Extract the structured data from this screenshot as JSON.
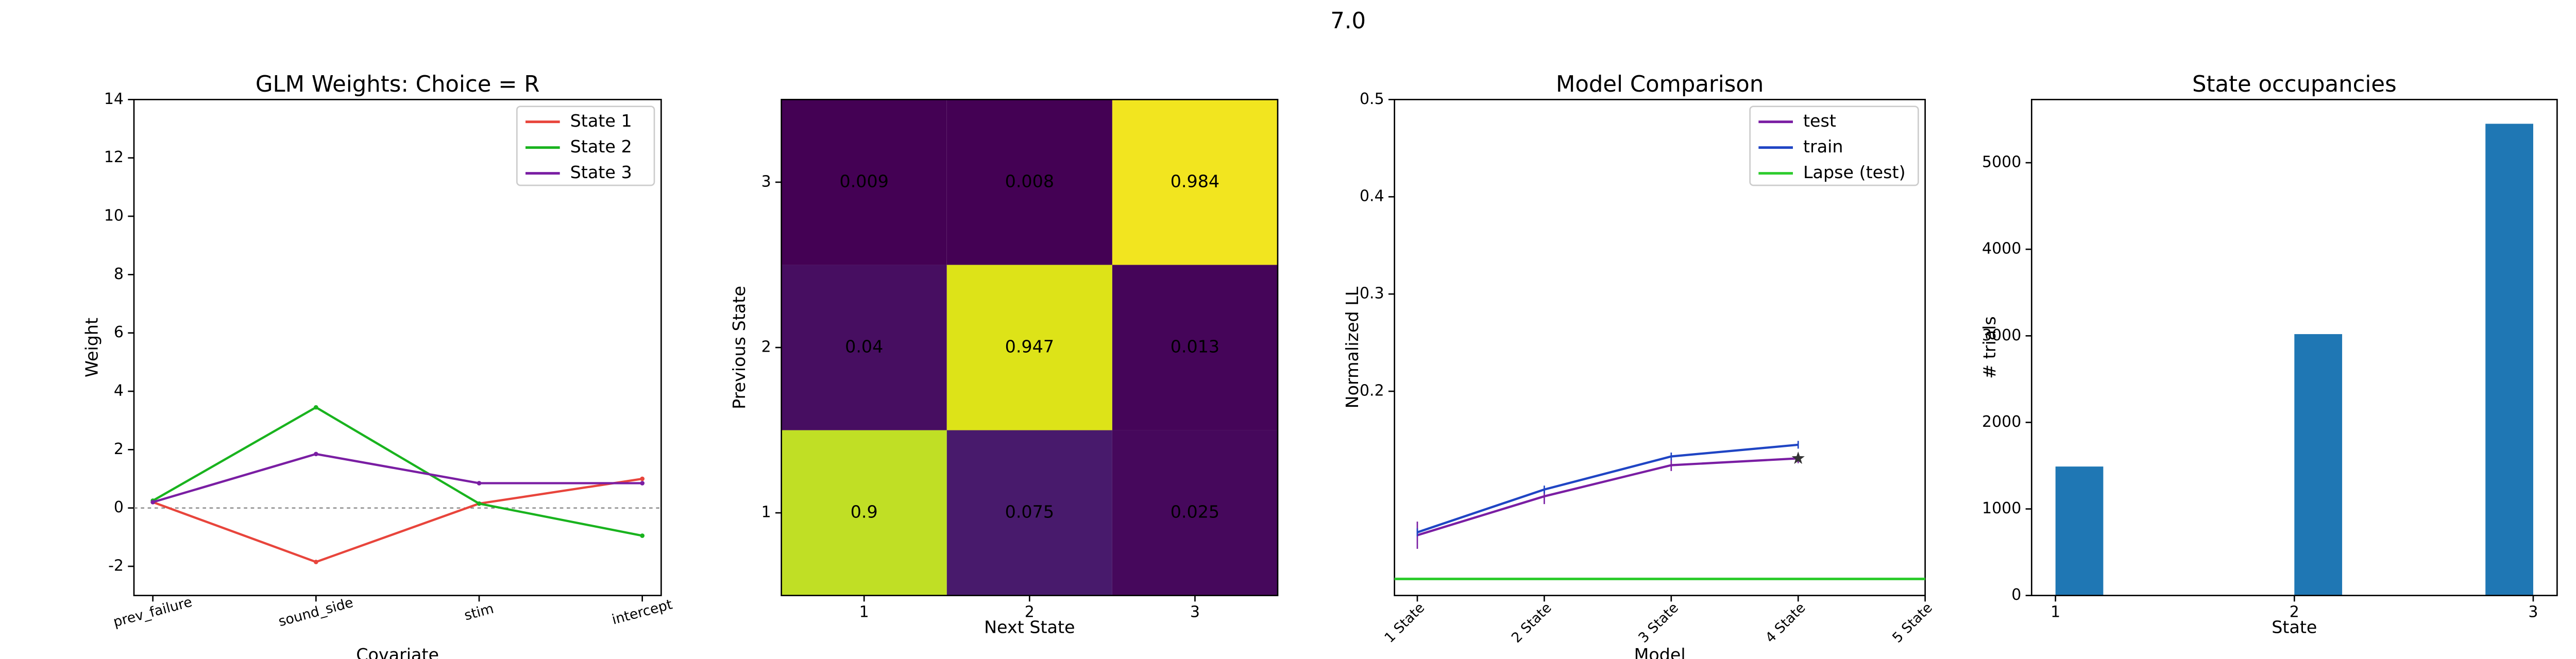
{
  "title": "7.0",
  "chart_data": [
    {
      "type": "line",
      "title": "GLM Weights: Choice = R",
      "x_label": "Covariate",
      "y_label": "Weight",
      "categories": [
        "prev_failure",
        "sound_side",
        "stim",
        "intercept"
      ],
      "series": [
        {
          "name": "State 1",
          "color": "#e8453c",
          "values": [
            0.2,
            -1.85,
            0.15,
            1.0
          ]
        },
        {
          "name": "State 2",
          "color": "#19b31e",
          "values": [
            0.25,
            3.45,
            0.15,
            -0.95
          ]
        },
        {
          "name": "State 3",
          "color": "#7a1ea3",
          "values": [
            0.2,
            1.85,
            0.85,
            0.85
          ]
        }
      ],
      "ylim": [
        -3,
        14
      ],
      "yticks": [
        -2,
        0,
        2,
        4,
        6,
        8,
        10,
        12,
        14
      ],
      "hline": 0,
      "legend": "upper right"
    },
    {
      "type": "heatmap",
      "x_label": "Next State",
      "y_label": "Previous State",
      "x_categories": [
        "1",
        "2",
        "3"
      ],
      "y_categories": [
        "1",
        "2",
        "3"
      ],
      "values": [
        [
          0.9,
          0.075,
          0.025
        ],
        [
          0.04,
          0.947,
          0.013
        ],
        [
          0.009,
          0.008,
          0.984
        ]
      ],
      "colors": [
        [
          "#c0df25",
          "#481a6c",
          "#46085c"
        ],
        [
          "#470e61",
          "#dde318",
          "#450559"
        ],
        [
          "#440154",
          "#440154",
          "#f2e51f"
        ]
      ]
    },
    {
      "type": "line",
      "title": "Model Comparison",
      "x_label": "Model",
      "y_label": "Normalized LL",
      "xlim": [
        0.82,
        5
      ],
      "xticks": [
        {
          "value": 1,
          "label": "1 State"
        },
        {
          "value": 2,
          "label": "2 State"
        },
        {
          "value": 3,
          "label": "3 State"
        },
        {
          "value": 4,
          "label": "4 State"
        },
        {
          "value": 5,
          "label": "5 State"
        }
      ],
      "x": [
        1,
        2,
        3,
        4
      ],
      "series": [
        {
          "name": "test",
          "color": "#7a1ea3",
          "values": [
            0.052,
            0.092,
            0.124,
            0.131
          ],
          "errors": [
            0.014,
            0.008,
            0.006,
            0.005
          ]
        },
        {
          "name": "train",
          "color": "#1f45c4",
          "values": [
            0.055,
            0.099,
            0.133,
            0.145
          ],
          "errors": [
            0.004,
            0.004,
            0.004,
            0.004
          ]
        },
        {
          "name": "Lapse (test)",
          "color": "#2ecc2e",
          "hline": 0.007
        }
      ],
      "ylim": [
        -0.01,
        0.5
      ],
      "yticks": [
        0.2,
        0.3,
        0.4,
        0.5
      ],
      "legend": "upper right"
    },
    {
      "type": "histogram",
      "title": "State occupancies",
      "x_label": "State",
      "y_label": "# trials",
      "bins": [
        1,
        1.2,
        1.4,
        1.6,
        1.8,
        2,
        2.2,
        2.4,
        2.6,
        2.8,
        3
      ],
      "counts": [
        1490,
        0,
        0,
        0,
        0,
        3020,
        0,
        0,
        0,
        5450
      ],
      "color": "#1f77b4",
      "xlim": [
        0.9,
        3.1
      ],
      "xticks": [
        1,
        2,
        3
      ],
      "ylim": [
        0,
        5730
      ],
      "yticks": [
        0,
        1000,
        2000,
        3000,
        4000,
        5000
      ]
    }
  ]
}
